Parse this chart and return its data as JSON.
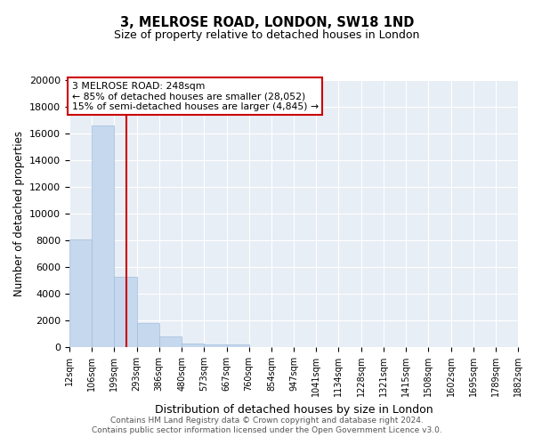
{
  "title1": "3, MELROSE ROAD, LONDON, SW18 1ND",
  "title2": "Size of property relative to detached houses in London",
  "xlabel": "Distribution of detached houses by size in London",
  "ylabel": "Number of detached properties",
  "bar_color": "#c5d8ed",
  "bar_edge_color": "#a0bedc",
  "bar_values": [
    8050,
    16600,
    5300,
    1800,
    800,
    300,
    200,
    200,
    0,
    0,
    0,
    0,
    0,
    0,
    0,
    0,
    0,
    0,
    0,
    0
  ],
  "bin_edges": [
    12,
    106,
    199,
    293,
    386,
    480,
    573,
    667,
    760,
    854,
    947,
    1041,
    1134,
    1228,
    1321,
    1415,
    1508,
    1602,
    1695,
    1789,
    1882
  ],
  "ylim": [
    0,
    20000
  ],
  "yticks": [
    0,
    2000,
    4000,
    6000,
    8000,
    10000,
    12000,
    14000,
    16000,
    18000,
    20000
  ],
  "property_size": 248,
  "red_line_color": "#cc0000",
  "annotation_line1": "3 MELROSE ROAD: 248sqm",
  "annotation_line2": "← 85% of detached houses are smaller (28,052)",
  "annotation_line3": "15% of semi-detached houses are larger (4,845) →",
  "annotation_box_color": "#cc0000",
  "annotation_bg_color": "#ffffff",
  "footer1": "Contains HM Land Registry data © Crown copyright and database right 2024.",
  "footer2": "Contains public sector information licensed under the Open Government Licence v3.0.",
  "plot_bg_color": "#e8eef5"
}
